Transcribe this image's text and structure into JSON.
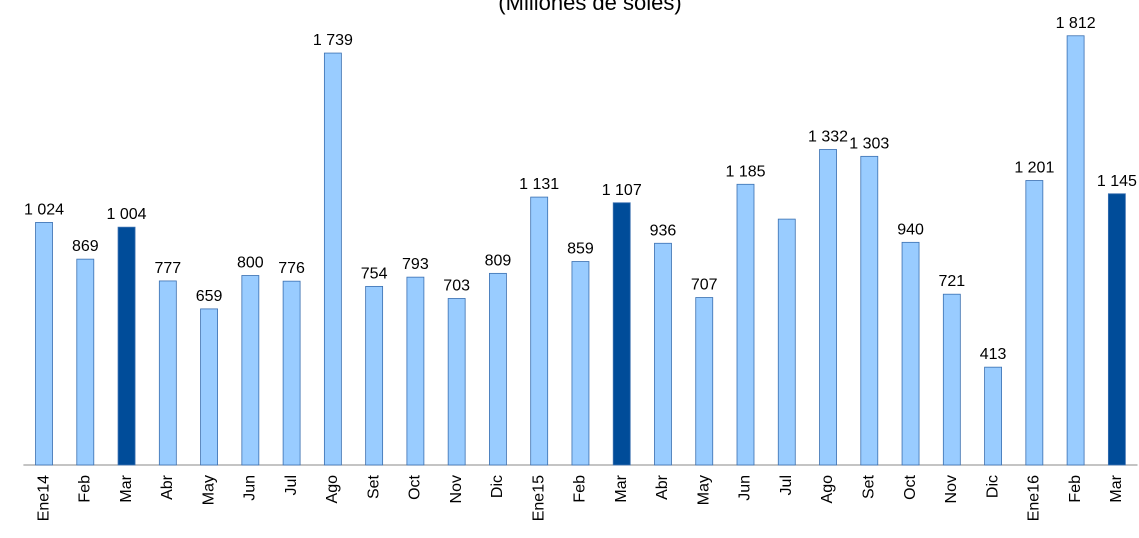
{
  "chart_data": {
    "type": "bar",
    "title": "(Millones de  soles)",
    "categories": [
      "Ene14",
      "Feb",
      "Mar",
      "Abr",
      "May",
      "Jun",
      "Jul",
      "Ago",
      "Set",
      "Oct",
      "Nov",
      "Dic",
      "Ene15",
      "Feb",
      "Mar",
      "Abr",
      "May",
      "Jun",
      "Jul",
      "Ago",
      "Set",
      "Oct",
      "Nov",
      "Dic",
      "Ene16",
      "Feb",
      "Mar"
    ],
    "values": [
      1024,
      869,
      1004,
      777,
      659,
      800,
      776,
      1739,
      754,
      793,
      703,
      809,
      1131,
      859,
      1107,
      936,
      707,
      1185,
      1038,
      1332,
      1303,
      940,
      721,
      413,
      1201,
      1812,
      1145
    ],
    "value_labels": [
      "1 024",
      "869",
      "1 004",
      "777",
      "659",
      "800",
      "776",
      "1 739",
      "754",
      "793",
      "703",
      "809",
      "1 131",
      "859",
      "1 107",
      "936",
      "707",
      "1 185",
      null,
      "1 332",
      "1 303",
      "940",
      "721",
      "413",
      "1 201",
      "1 812",
      "1 145"
    ],
    "colors": [
      "#99ccff",
      "#99ccff",
      "#004c99",
      "#99ccff",
      "#99ccff",
      "#99ccff",
      "#99ccff",
      "#99ccff",
      "#99ccff",
      "#99ccff",
      "#99ccff",
      "#99ccff",
      "#99ccff",
      "#99ccff",
      "#004c99",
      "#99ccff",
      "#99ccff",
      "#99ccff",
      "#99ccff",
      "#99ccff",
      "#99ccff",
      "#99ccff",
      "#99ccff",
      "#99ccff",
      "#99ccff",
      "#99ccff",
      "#004c99"
    ],
    "ylim": [
      0,
      1963
    ]
  }
}
